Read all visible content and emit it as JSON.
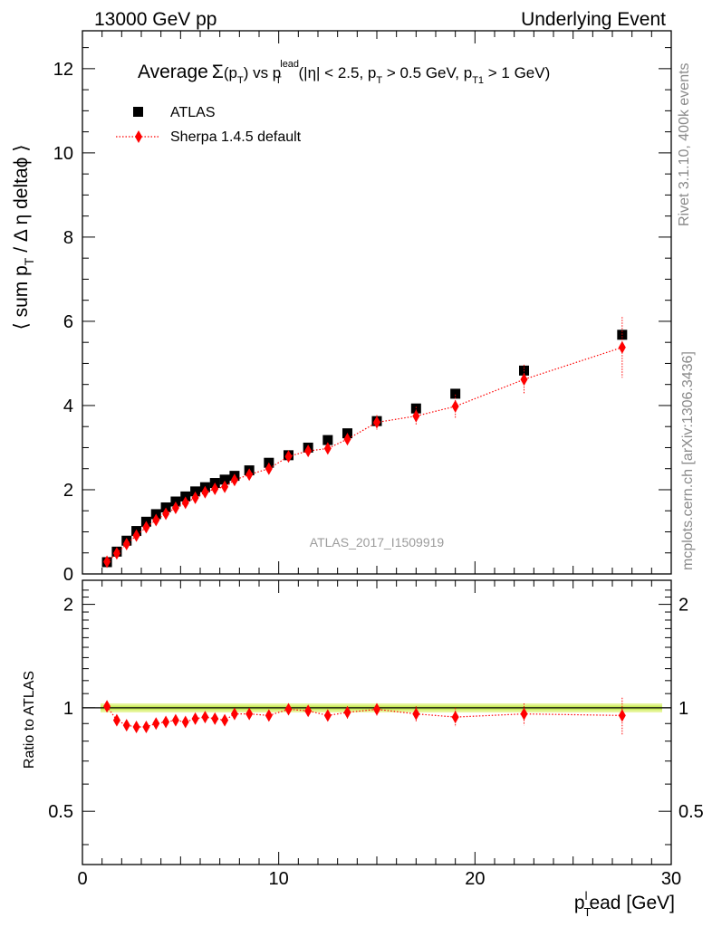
{
  "header": {
    "left": "13000 GeV pp",
    "right": "Underlying Event"
  },
  "side_labels": {
    "rivet": "Rivet 3.1.10,  400k events",
    "mcplots": "mcplots.cern.ch [arXiv:1306.3436]"
  },
  "chart_data": [
    {
      "type": "scatter",
      "title": "Average Σ(p_T) vs p_T^lead (|η| < 2.5, p_T > 0.5 GeV, p_T1 > 1 GeV)",
      "title_parts": {
        "a": "Average",
        "sigma": "Σ",
        "b": "(p",
        "b_sub": "T",
        "c": ") vs p",
        "c_sup": "lead",
        "c_sub": "T",
        "d": " (|η| < 2.5, p",
        "d_sub": "T",
        "e": " > 0.5 GeV, p",
        "e_sub": "T1",
        "f": " > 1 GeV)"
      },
      "ylabel": "⟨ sum p_T / Δ η deltaϕ ⟩",
      "ylabel_parts": {
        "a": "⟨ sum p",
        "sub": "T",
        "b": " / Δ η deltaϕ ⟩"
      },
      "watermark": "ATLAS_2017_I1509919",
      "xlim": [
        0,
        30
      ],
      "ylim": [
        0,
        12.9
      ],
      "yticks": [
        0,
        2,
        4,
        6,
        8,
        10,
        12
      ],
      "legend": {
        "position": "top-left"
      },
      "series": [
        {
          "name": "ATLAS",
          "color": "#000000",
          "marker": "square",
          "x": [
            1.25,
            1.75,
            2.25,
            2.75,
            3.25,
            3.75,
            4.25,
            4.75,
            5.25,
            5.75,
            6.25,
            6.75,
            7.25,
            7.75,
            8.5,
            9.5,
            10.5,
            11.5,
            12.5,
            13.5,
            15,
            17,
            19,
            22.5,
            27.5
          ],
          "y": [
            0.28,
            0.53,
            0.79,
            1.02,
            1.24,
            1.42,
            1.58,
            1.72,
            1.84,
            1.96,
            2.06,
            2.16,
            2.24,
            2.33,
            2.46,
            2.64,
            2.82,
            3.0,
            3.18,
            3.34,
            3.63,
            3.93,
            4.28,
            4.83,
            5.68
          ]
        },
        {
          "name": "Sherpa 1.4.5 default",
          "color": "#ff0000",
          "marker": "diamond",
          "line": "dotted",
          "x": [
            1.25,
            1.75,
            2.25,
            2.75,
            3.25,
            3.75,
            4.25,
            4.75,
            5.25,
            5.75,
            6.25,
            6.75,
            7.25,
            7.75,
            8.5,
            9.5,
            10.5,
            11.5,
            12.5,
            13.5,
            15,
            17,
            19,
            22.5,
            27.5
          ],
          "y": [
            0.29,
            0.49,
            0.71,
            0.91,
            1.11,
            1.28,
            1.43,
            1.57,
            1.69,
            1.81,
            1.94,
            2.02,
            2.07,
            2.23,
            2.36,
            2.5,
            2.79,
            2.92,
            2.98,
            3.2,
            3.6,
            3.75,
            3.98,
            4.62,
            5.38
          ],
          "yerr": [
            0.02,
            0.03,
            0.03,
            0.03,
            0.04,
            0.04,
            0.04,
            0.05,
            0.05,
            0.05,
            0.06,
            0.06,
            0.06,
            0.07,
            0.08,
            0.09,
            0.1,
            0.11,
            0.12,
            0.14,
            0.17,
            0.22,
            0.28,
            0.35,
            0.72
          ]
        }
      ]
    },
    {
      "type": "scatter",
      "ylabel": "Ratio to ATLAS",
      "xlabel": "p_T^l ead [GeV]",
      "xlabel_parts": {
        "a": "p",
        "sub": "T",
        "sup": "l",
        "b": "ead [GeV]"
      },
      "xlim": [
        0,
        30
      ],
      "xticks": [
        0,
        10,
        20,
        30
      ],
      "ylim": [
        0.35,
        2.35
      ],
      "yticks": [
        0.5,
        1,
        2
      ],
      "ytick_labels": [
        "0.5",
        "1",
        "2"
      ],
      "band": {
        "color_outer": "#e6f59a",
        "color_inner": "#c8ec5c"
      },
      "series": [
        {
          "name": "Sherpa 1.4.5 default",
          "color": "#ff0000",
          "marker": "diamond",
          "line": "dotted",
          "x": [
            1.25,
            1.75,
            2.25,
            2.75,
            3.25,
            3.75,
            4.25,
            4.75,
            5.25,
            5.75,
            6.25,
            6.75,
            7.25,
            7.75,
            8.5,
            9.5,
            10.5,
            11.5,
            12.5,
            13.5,
            15,
            17,
            19,
            22.5,
            27.5
          ],
          "y": [
            1.01,
            0.92,
            0.89,
            0.88,
            0.88,
            0.9,
            0.91,
            0.92,
            0.91,
            0.93,
            0.94,
            0.93,
            0.92,
            0.96,
            0.96,
            0.95,
            0.99,
            0.98,
            0.95,
            0.97,
            0.99,
            0.96,
            0.94,
            0.96,
            0.95
          ],
          "yerr": [
            0.02,
            0.02,
            0.02,
            0.02,
            0.02,
            0.02,
            0.02,
            0.02,
            0.02,
            0.02,
            0.02,
            0.02,
            0.02,
            0.02,
            0.02,
            0.02,
            0.02,
            0.03,
            0.03,
            0.04,
            0.04,
            0.05,
            0.06,
            0.07,
            0.12
          ]
        }
      ]
    }
  ]
}
